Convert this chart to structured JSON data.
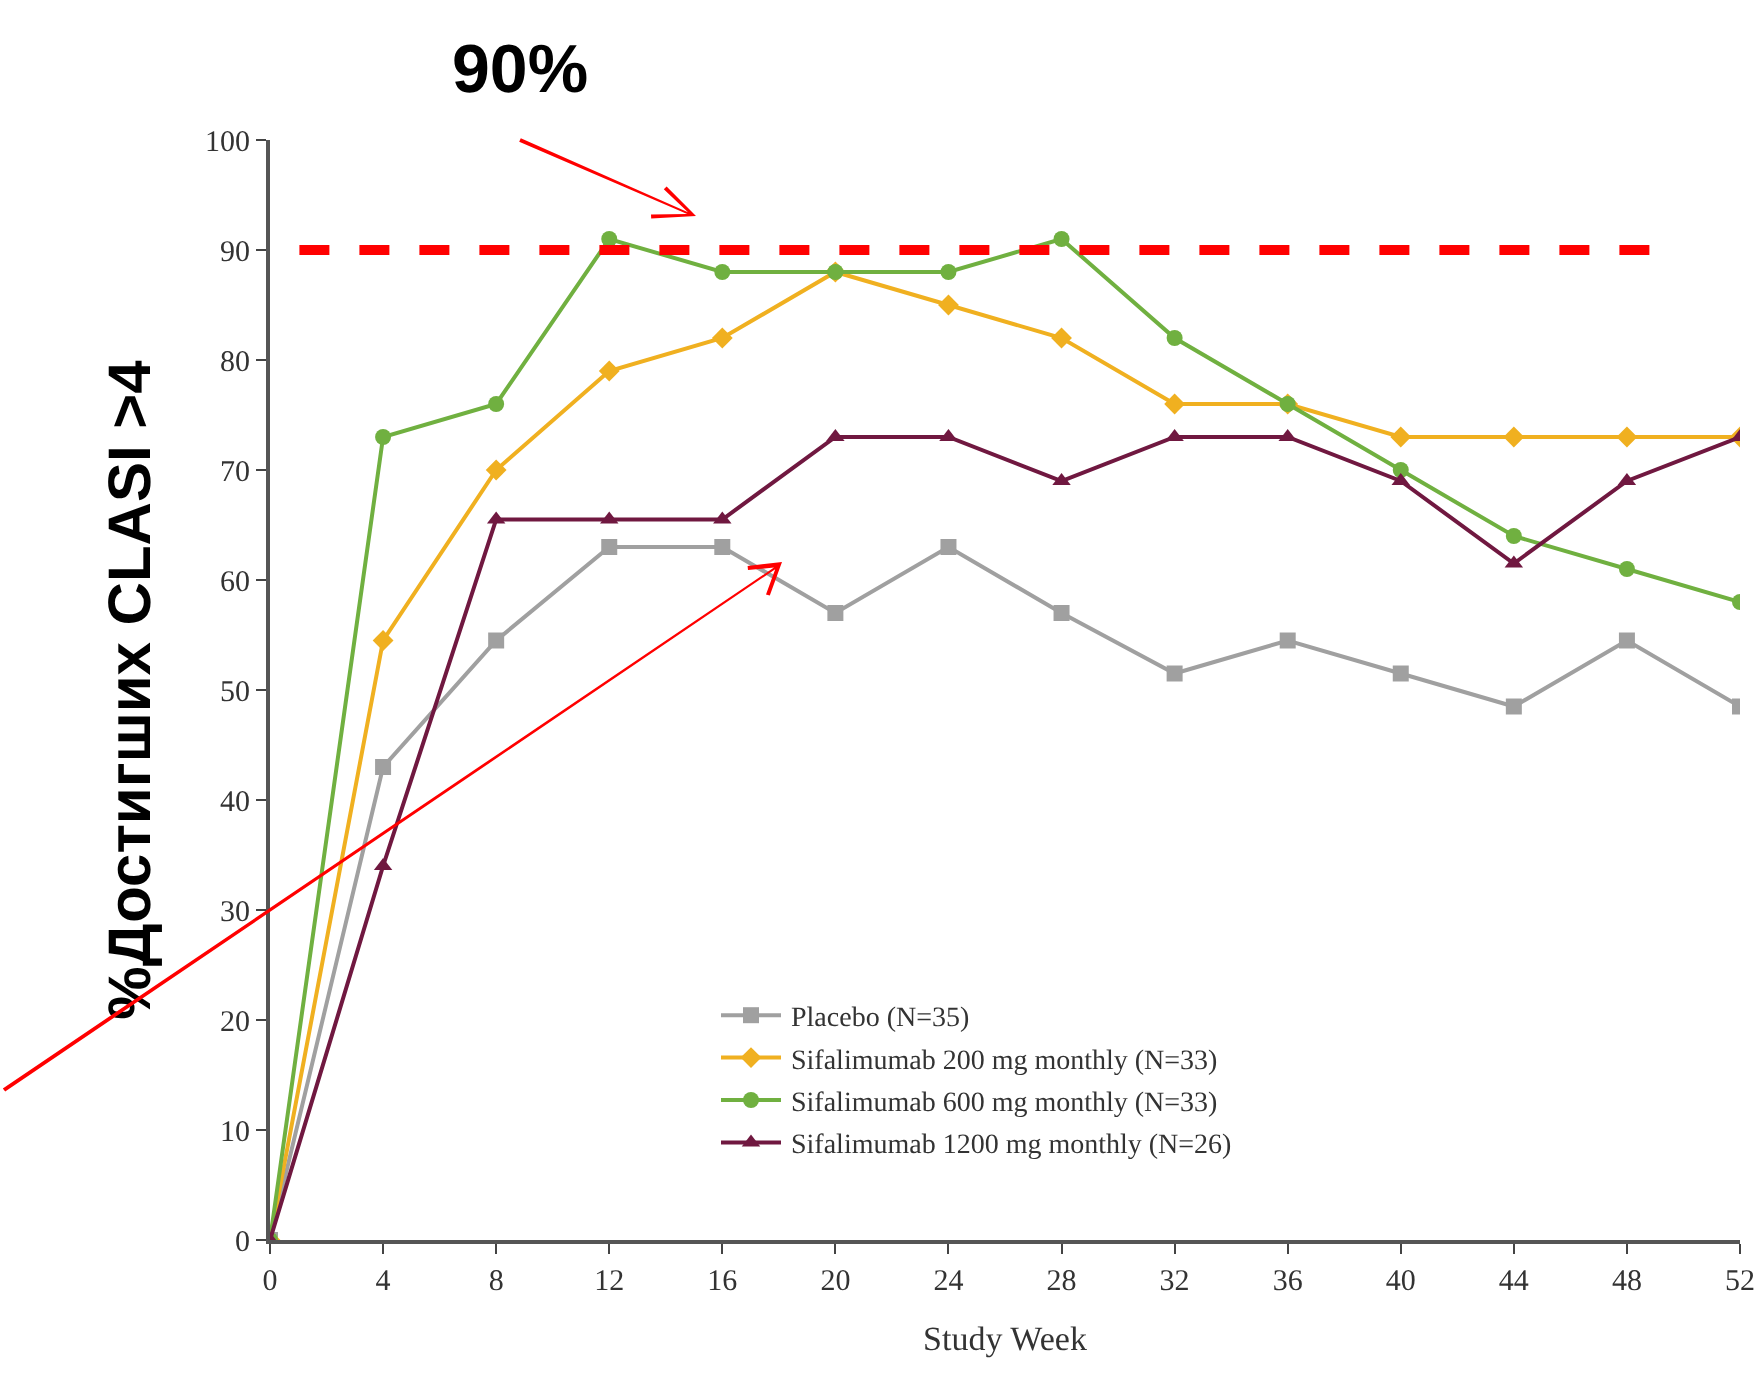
{
  "chart_data": {
    "type": "line",
    "xlabel": "Study Week",
    "ylabel": "%Достигших CLASI >4",
    "x": [
      0,
      4,
      8,
      12,
      16,
      20,
      24,
      28,
      32,
      36,
      40,
      44,
      48,
      52
    ],
    "series": [
      {
        "name": "Placebo (N=35)",
        "color": "#a0a0a0",
        "marker": "square",
        "values": [
          0,
          43,
          54.5,
          63,
          63,
          57,
          63,
          57,
          51.5,
          54.5,
          51.5,
          48.5,
          54.5,
          48.5
        ]
      },
      {
        "name": "Sifalimumab 200 mg monthly (N=33)",
        "color": "#f0b020",
        "marker": "diamond",
        "values": [
          0,
          54.5,
          70,
          79,
          82,
          88,
          85,
          82,
          76,
          76,
          73,
          73,
          73,
          73
        ]
      },
      {
        "name": "Sifalimumab 600 mg monthly (N=33)",
        "color": "#70b040",
        "marker": "circle",
        "values": [
          0,
          73,
          76,
          91,
          88,
          88,
          88,
          91,
          82,
          76,
          70,
          64,
          61,
          58
        ]
      },
      {
        "name": "Sifalimumab 1200 mg monthly (N=26)",
        "color": "#701840",
        "marker": "triangle",
        "values": [
          0,
          34,
          65.5,
          65.5,
          65.5,
          73,
          73,
          69,
          73,
          73,
          69,
          61.5,
          69,
          73
        ]
      }
    ],
    "xlim": [
      0,
      52
    ],
    "xticks": [
      0,
      4,
      8,
      12,
      16,
      20,
      24,
      28,
      32,
      36,
      40,
      44,
      48,
      52
    ],
    "ylim": [
      0,
      100
    ],
    "yticks": [
      0,
      10,
      20,
      30,
      40,
      50,
      60,
      70,
      80,
      90,
      100
    ],
    "grid": false,
    "legend": "bottom right",
    "line_style": "solid",
    "ref_lines": [
      {
        "axis": "y",
        "value": 90,
        "label": "90%",
        "color": "#ff0000",
        "line_style": "dashed"
      }
    ]
  }
}
